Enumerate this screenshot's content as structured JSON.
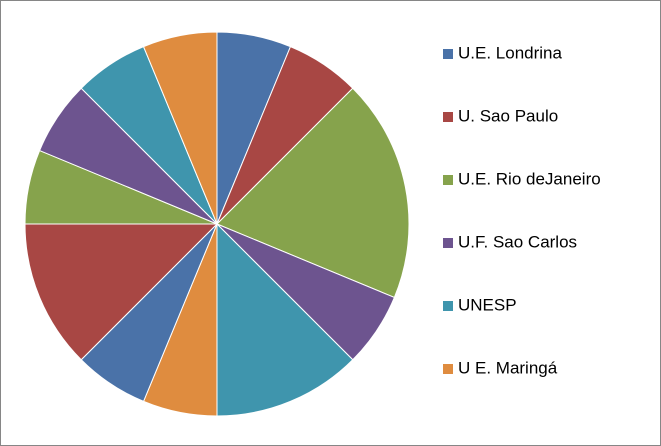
{
  "chart_data": {
    "type": "pie",
    "categories": [
      "U.E. Londrina",
      "U. Sao Paulo",
      "U.E. Rio deJaneiro",
      "U.F. Sao Carlos",
      "UNESP",
      "U E. Maringá",
      null,
      null,
      null,
      null,
      null,
      null
    ],
    "values": [
      1,
      1,
      3,
      1,
      2,
      1,
      1,
      2,
      1,
      1,
      1,
      1
    ],
    "colors": [
      "#4a72a8",
      "#a84744",
      "#86a34c",
      "#6d548f",
      "#3f95ad",
      "#df8c3f",
      "#4a72a8",
      "#a84744",
      "#86a34c",
      "#6d548f",
      "#3f95ad",
      "#df8c3f"
    ],
    "legend": "right"
  }
}
